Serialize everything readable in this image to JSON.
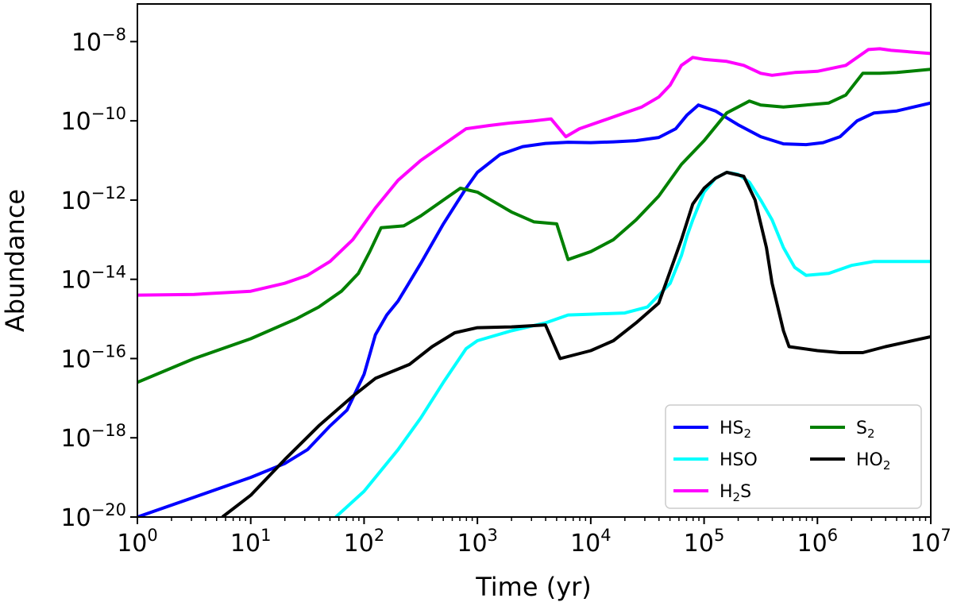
{
  "chart_data": {
    "type": "line",
    "title": "",
    "xlabel": "Time (yr)",
    "ylabel": "Abundance",
    "xscale": "log",
    "yscale": "log",
    "xlim_log10": [
      0,
      7
    ],
    "ylim_log10": [
      -20,
      -7.05
    ],
    "grid": false,
    "legend_position": "bottom-right",
    "x_ticks": [
      {
        "base": "10",
        "exp": "0",
        "log10": 0
      },
      {
        "base": "10",
        "exp": "1",
        "log10": 1
      },
      {
        "base": "10",
        "exp": "2",
        "log10": 2
      },
      {
        "base": "10",
        "exp": "3",
        "log10": 3
      },
      {
        "base": "10",
        "exp": "4",
        "log10": 4
      },
      {
        "base": "10",
        "exp": "5",
        "log10": 5
      },
      {
        "base": "10",
        "exp": "6",
        "log10": 6
      },
      {
        "base": "10",
        "exp": "7",
        "log10": 7
      }
    ],
    "y_ticks": [
      {
        "base": "10",
        "exp": "−20",
        "log10": -20
      },
      {
        "base": "10",
        "exp": "−18",
        "log10": -18
      },
      {
        "base": "10",
        "exp": "−16",
        "log10": -16
      },
      {
        "base": "10",
        "exp": "−14",
        "log10": -14
      },
      {
        "base": "10",
        "exp": "−12",
        "log10": -12
      },
      {
        "base": "10",
        "exp": "−10",
        "log10": -10
      },
      {
        "base": "10",
        "exp": "−8",
        "log10": -8
      }
    ],
    "series": [
      {
        "name": "HS2",
        "label_main": "HS",
        "label_sub": "2",
        "label_tail": "",
        "color": "#0000ff",
        "points_log10": [
          [
            0,
            -20
          ],
          [
            0.5,
            -19.5
          ],
          [
            1,
            -19
          ],
          [
            1.3,
            -18.65
          ],
          [
            1.5,
            -18.3
          ],
          [
            1.7,
            -17.7
          ],
          [
            1.85,
            -17.3
          ],
          [
            2,
            -16.4
          ],
          [
            2.1,
            -15.4
          ],
          [
            2.2,
            -14.9
          ],
          [
            2.3,
            -14.55
          ],
          [
            2.5,
            -13.6
          ],
          [
            2.7,
            -12.6
          ],
          [
            2.9,
            -11.7
          ],
          [
            3,
            -11.3
          ],
          [
            3.2,
            -10.85
          ],
          [
            3.4,
            -10.65
          ],
          [
            3.6,
            -10.57
          ],
          [
            3.8,
            -10.54
          ],
          [
            4,
            -10.55
          ],
          [
            4.2,
            -10.53
          ],
          [
            4.4,
            -10.5
          ],
          [
            4.6,
            -10.42
          ],
          [
            4.75,
            -10.2
          ],
          [
            4.85,
            -9.85
          ],
          [
            4.95,
            -9.6
          ],
          [
            5.1,
            -9.75
          ],
          [
            5.3,
            -10.1
          ],
          [
            5.5,
            -10.4
          ],
          [
            5.7,
            -10.58
          ],
          [
            5.9,
            -10.6
          ],
          [
            6.05,
            -10.55
          ],
          [
            6.2,
            -10.4
          ],
          [
            6.35,
            -10.0
          ],
          [
            6.5,
            -9.8
          ],
          [
            6.7,
            -9.75
          ],
          [
            7,
            -9.55
          ]
        ]
      },
      {
        "name": "HSO",
        "label_main": "HSO",
        "label_sub": "",
        "label_tail": "",
        "color": "#00ffff",
        "points_log10": [
          [
            1.75,
            -20
          ],
          [
            2,
            -19.35
          ],
          [
            2.3,
            -18.3
          ],
          [
            2.5,
            -17.5
          ],
          [
            2.7,
            -16.6
          ],
          [
            2.9,
            -15.75
          ],
          [
            3,
            -15.55
          ],
          [
            3.3,
            -15.3
          ],
          [
            3.6,
            -15.1
          ],
          [
            3.8,
            -14.9
          ],
          [
            4,
            -14.88
          ],
          [
            4.3,
            -14.85
          ],
          [
            4.5,
            -14.7
          ],
          [
            4.7,
            -14.1
          ],
          [
            4.8,
            -13.4
          ],
          [
            4.85,
            -12.9
          ],
          [
            4.9,
            -12.5
          ],
          [
            5,
            -11.8
          ],
          [
            5.1,
            -11.45
          ],
          [
            5.2,
            -11.3
          ],
          [
            5.3,
            -11.35
          ],
          [
            5.4,
            -11.55
          ],
          [
            5.5,
            -12.0
          ],
          [
            5.6,
            -12.5
          ],
          [
            5.7,
            -13.2
          ],
          [
            5.8,
            -13.7
          ],
          [
            5.9,
            -13.9
          ],
          [
            6.1,
            -13.85
          ],
          [
            6.3,
            -13.65
          ],
          [
            6.5,
            -13.55
          ],
          [
            7,
            -13.55
          ]
        ]
      },
      {
        "name": "H2S",
        "label_main": "H",
        "label_sub": "2",
        "label_tail": "S",
        "color": "#ff00ff",
        "points_log10": [
          [
            0,
            -14.4
          ],
          [
            0.5,
            -14.38
          ],
          [
            1,
            -14.3
          ],
          [
            1.3,
            -14.1
          ],
          [
            1.5,
            -13.9
          ],
          [
            1.7,
            -13.55
          ],
          [
            1.9,
            -13.0
          ],
          [
            2.1,
            -12.2
          ],
          [
            2.3,
            -11.5
          ],
          [
            2.5,
            -11.0
          ],
          [
            2.7,
            -10.6
          ],
          [
            2.9,
            -10.2
          ],
          [
            3.1,
            -10.12
          ],
          [
            3.3,
            -10.05
          ],
          [
            3.5,
            -10.0
          ],
          [
            3.65,
            -9.95
          ],
          [
            3.78,
            -10.4
          ],
          [
            3.9,
            -10.2
          ],
          [
            4.1,
            -10.0
          ],
          [
            4.3,
            -9.8
          ],
          [
            4.45,
            -9.65
          ],
          [
            4.6,
            -9.4
          ],
          [
            4.7,
            -9.1
          ],
          [
            4.8,
            -8.6
          ],
          [
            4.9,
            -8.4
          ],
          [
            5,
            -8.45
          ],
          [
            5.2,
            -8.5
          ],
          [
            5.35,
            -8.6
          ],
          [
            5.5,
            -8.8
          ],
          [
            5.6,
            -8.85
          ],
          [
            5.8,
            -8.78
          ],
          [
            6,
            -8.75
          ],
          [
            6.25,
            -8.6
          ],
          [
            6.45,
            -8.2
          ],
          [
            6.55,
            -8.18
          ],
          [
            6.65,
            -8.22
          ],
          [
            7,
            -8.3
          ]
        ]
      },
      {
        "name": "S2",
        "label_main": "S",
        "label_sub": "2",
        "label_tail": "",
        "color": "#008000",
        "points_log10": [
          [
            0,
            -16.6
          ],
          [
            0.5,
            -16.0
          ],
          [
            1,
            -15.5
          ],
          [
            1.4,
            -15.0
          ],
          [
            1.6,
            -14.7
          ],
          [
            1.8,
            -14.3
          ],
          [
            1.95,
            -13.85
          ],
          [
            2.05,
            -13.3
          ],
          [
            2.15,
            -12.7
          ],
          [
            2.35,
            -12.65
          ],
          [
            2.5,
            -12.4
          ],
          [
            2.7,
            -12.0
          ],
          [
            2.85,
            -11.7
          ],
          [
            3,
            -11.8
          ],
          [
            3.3,
            -12.3
          ],
          [
            3.5,
            -12.55
          ],
          [
            3.7,
            -12.6
          ],
          [
            3.8,
            -13.5
          ],
          [
            4.0,
            -13.3
          ],
          [
            4.2,
            -13.0
          ],
          [
            4.4,
            -12.5
          ],
          [
            4.5,
            -12.2
          ],
          [
            4.6,
            -11.9
          ],
          [
            4.8,
            -11.1
          ],
          [
            5,
            -10.5
          ],
          [
            5.2,
            -9.8
          ],
          [
            5.4,
            -9.5
          ],
          [
            5.5,
            -9.6
          ],
          [
            5.7,
            -9.65
          ],
          [
            5.9,
            -9.6
          ],
          [
            6.1,
            -9.55
          ],
          [
            6.25,
            -9.35
          ],
          [
            6.4,
            -8.8
          ],
          [
            6.55,
            -8.8
          ],
          [
            6.7,
            -8.78
          ],
          [
            7,
            -8.7
          ]
        ]
      },
      {
        "name": "HO2",
        "label_main": "HO",
        "label_sub": "2",
        "label_tail": "",
        "color": "#000000",
        "points_log10": [
          [
            0.75,
            -20
          ],
          [
            1,
            -19.45
          ],
          [
            1.3,
            -18.55
          ],
          [
            1.6,
            -17.7
          ],
          [
            1.9,
            -16.95
          ],
          [
            2.1,
            -16.5
          ],
          [
            2.4,
            -16.15
          ],
          [
            2.6,
            -15.7
          ],
          [
            2.8,
            -15.35
          ],
          [
            3,
            -15.22
          ],
          [
            3.3,
            -15.2
          ],
          [
            3.6,
            -15.15
          ],
          [
            3.73,
            -16.0
          ],
          [
            4.0,
            -15.8
          ],
          [
            4.2,
            -15.55
          ],
          [
            4.4,
            -15.1
          ],
          [
            4.6,
            -14.6
          ],
          [
            4.7,
            -13.8
          ],
          [
            4.8,
            -13.0
          ],
          [
            4.9,
            -12.1
          ],
          [
            5,
            -11.7
          ],
          [
            5.1,
            -11.45
          ],
          [
            5.2,
            -11.3
          ],
          [
            5.35,
            -11.4
          ],
          [
            5.45,
            -12.0
          ],
          [
            5.55,
            -13.2
          ],
          [
            5.6,
            -14.1
          ],
          [
            5.7,
            -15.3
          ],
          [
            5.75,
            -15.7
          ],
          [
            6,
            -15.8
          ],
          [
            6.2,
            -15.85
          ],
          [
            6.4,
            -15.85
          ],
          [
            6.6,
            -15.7
          ],
          [
            7,
            -15.45
          ]
        ]
      }
    ]
  }
}
